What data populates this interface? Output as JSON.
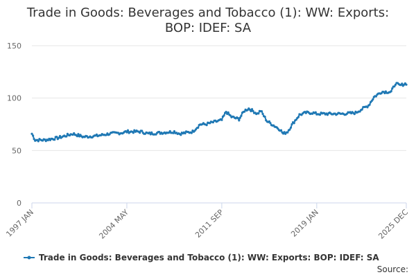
{
  "chart_data": {
    "type": "line",
    "title_lines": [
      "Trade in Goods: Beverages and Tobacco (1): WW: Exports:",
      "BOP: IDEF: SA"
    ],
    "xlabel": "",
    "ylabel": "",
    "ylim": [
      0,
      150
    ],
    "yticks": [
      "0",
      "50",
      "100",
      "150"
    ],
    "xticks": [
      "1997 JAN",
      "2004 MAY",
      "2011 SEP",
      "2019 JAN",
      "2025 DEC"
    ],
    "grid": true,
    "legend_position": "bottom",
    "color": "#1f78b4",
    "series": [
      {
        "name": "Trade in Goods: Beverages and Tobacco (1): WW: Exports: BOP: IDEF: SA",
        "start": "1997 JAN",
        "end": "2025 DEC",
        "frequency": "monthly",
        "anchors": [
          [
            "1997-01",
            66
          ],
          [
            "1997-04",
            60
          ],
          [
            "1998-01",
            60
          ],
          [
            "1999-01",
            62
          ],
          [
            "2000-03",
            66
          ],
          [
            "2001-01",
            63
          ],
          [
            "2002-01",
            64
          ],
          [
            "2003-01",
            66
          ],
          [
            "2004-01",
            67
          ],
          [
            "2004-05",
            68
          ],
          [
            "2005-06",
            68
          ],
          [
            "2006-01",
            66
          ],
          [
            "2007-01",
            67
          ],
          [
            "2008-01",
            68
          ],
          [
            "2008-06",
            66
          ],
          [
            "2009-06",
            68
          ],
          [
            "2010-01",
            75
          ],
          [
            "2010-06",
            75
          ],
          [
            "2011-01",
            77
          ],
          [
            "2011-09",
            79
          ],
          [
            "2012-01",
            87
          ],
          [
            "2012-06",
            82
          ],
          [
            "2013-01",
            80
          ],
          [
            "2013-06",
            88
          ],
          [
            "2013-10",
            90
          ],
          [
            "2014-03",
            87
          ],
          [
            "2014-06",
            85
          ],
          [
            "2014-09",
            88
          ],
          [
            "2015-03",
            78
          ],
          [
            "2015-09",
            74
          ],
          [
            "2016-03",
            70
          ],
          [
            "2016-06",
            66
          ],
          [
            "2016-10",
            68
          ],
          [
            "2017-03",
            76
          ],
          [
            "2017-09",
            84
          ],
          [
            "2018-03",
            86
          ],
          [
            "2018-09",
            86
          ],
          [
            "2019-01",
            85
          ],
          [
            "2020-01",
            85
          ],
          [
            "2021-01",
            85
          ],
          [
            "2022-01",
            86
          ],
          [
            "2022-06",
            89
          ],
          [
            "2023-01",
            93
          ],
          [
            "2023-06",
            101
          ],
          [
            "2024-01",
            106
          ],
          [
            "2024-10",
            106
          ],
          [
            "2025-02",
            114
          ],
          [
            "2025-06",
            112
          ],
          [
            "2025-12",
            114
          ]
        ]
      }
    ]
  },
  "legend": {
    "label": "Trade in Goods: Beverages and Tobacco (1): WW: Exports: BOP: IDEF: SA"
  },
  "source": {
    "label": "Source:"
  }
}
